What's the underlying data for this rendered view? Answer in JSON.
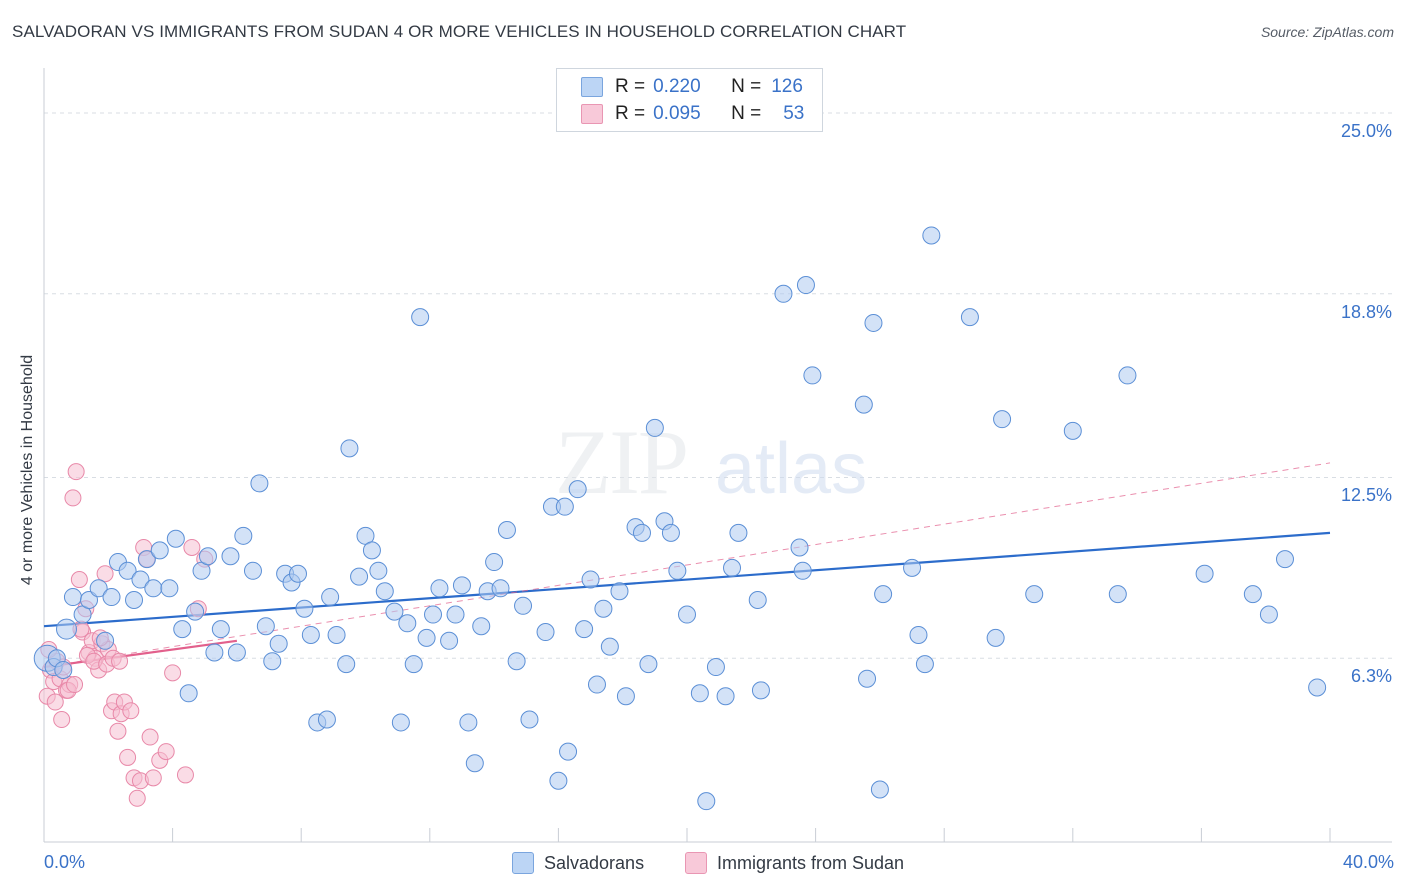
{
  "title": "SALVADORAN VS IMMIGRANTS FROM SUDAN 4 OR MORE VEHICLES IN HOUSEHOLD CORRELATION CHART",
  "source": "Source: ZipAtlas.com",
  "watermark": {
    "zip": "ZIP",
    "atlas": "atlas"
  },
  "legend": {
    "r_label": "R =",
    "n_label": "N =",
    "series": [
      {
        "r": "0.220",
        "n": "126"
      },
      {
        "r": "0.095",
        "n": "53"
      }
    ]
  },
  "colors": {
    "blue_fill": "#aecbf1",
    "blue_stroke": "#5b8fd6",
    "blue_line": "#2c6ccb",
    "pink_fill": "#f6bfd2",
    "pink_stroke": "#e888a8",
    "pink_line": "#e2608c",
    "grid": "#d8dde3",
    "axis_text": "#3a72c8"
  },
  "chart_data": {
    "type": "scatter",
    "title": "SALVADORAN VS IMMIGRANTS FROM SUDAN 4 OR MORE VEHICLES IN HOUSEHOLD CORRELATION CHART",
    "xlabel": "",
    "ylabel": "4 or more Vehicles in Household",
    "xlim": [
      0,
      40
    ],
    "ylim": [
      0,
      26.2
    ],
    "x_tick_labels": [
      "0.0%",
      "40.0%"
    ],
    "y_ticks": [
      6.3,
      12.5,
      18.8,
      25.0
    ],
    "y_tick_labels": [
      "6.3%",
      "12.5%",
      "18.8%",
      "25.0%"
    ],
    "series": [
      {
        "name": "Salvadorans",
        "trend": {
          "x": [
            0,
            40
          ],
          "y": [
            7.4,
            10.6
          ],
          "style": "solid"
        },
        "points": [
          [
            0.1,
            6.3
          ],
          [
            0.3,
            6.0
          ],
          [
            0.4,
            6.3
          ],
          [
            0.6,
            5.9
          ],
          [
            0.7,
            7.3
          ],
          [
            0.9,
            8.4
          ],
          [
            1.2,
            7.8
          ],
          [
            1.4,
            8.3
          ],
          [
            1.7,
            8.7
          ],
          [
            1.9,
            6.9
          ],
          [
            2.1,
            8.4
          ],
          [
            2.3,
            9.6
          ],
          [
            2.6,
            9.3
          ],
          [
            2.8,
            8.3
          ],
          [
            3.0,
            9.0
          ],
          [
            3.2,
            9.7
          ],
          [
            3.4,
            8.7
          ],
          [
            3.6,
            10.0
          ],
          [
            3.9,
            8.7
          ],
          [
            4.1,
            10.4
          ],
          [
            4.3,
            7.3
          ],
          [
            4.5,
            5.1
          ],
          [
            4.7,
            7.9
          ],
          [
            4.9,
            9.3
          ],
          [
            5.1,
            9.8
          ],
          [
            5.3,
            6.5
          ],
          [
            5.5,
            7.3
          ],
          [
            5.8,
            9.8
          ],
          [
            6.0,
            6.5
          ],
          [
            6.2,
            10.5
          ],
          [
            6.5,
            9.3
          ],
          [
            6.7,
            12.3
          ],
          [
            6.9,
            7.4
          ],
          [
            7.1,
            6.2
          ],
          [
            7.3,
            6.8
          ],
          [
            7.5,
            9.2
          ],
          [
            7.7,
            8.9
          ],
          [
            7.9,
            9.2
          ],
          [
            8.1,
            8.0
          ],
          [
            8.3,
            7.1
          ],
          [
            8.5,
            4.1
          ],
          [
            8.8,
            4.2
          ],
          [
            8.9,
            8.4
          ],
          [
            9.1,
            7.1
          ],
          [
            9.4,
            6.1
          ],
          [
            9.5,
            13.5
          ],
          [
            9.8,
            9.1
          ],
          [
            10.0,
            10.5
          ],
          [
            10.2,
            10.0
          ],
          [
            10.4,
            9.3
          ],
          [
            10.6,
            8.6
          ],
          [
            10.9,
            7.9
          ],
          [
            11.1,
            4.1
          ],
          [
            11.3,
            7.5
          ],
          [
            11.5,
            6.1
          ],
          [
            11.7,
            18.0
          ],
          [
            11.9,
            7.0
          ],
          [
            12.1,
            7.8
          ],
          [
            12.3,
            8.7
          ],
          [
            12.6,
            6.9
          ],
          [
            12.8,
            7.8
          ],
          [
            13.0,
            8.8
          ],
          [
            13.2,
            4.1
          ],
          [
            13.4,
            2.7
          ],
          [
            13.6,
            7.4
          ],
          [
            13.8,
            8.6
          ],
          [
            14.0,
            9.6
          ],
          [
            14.2,
            8.7
          ],
          [
            14.4,
            10.7
          ],
          [
            14.7,
            6.2
          ],
          [
            14.9,
            8.1
          ],
          [
            15.1,
            4.2
          ],
          [
            15.6,
            7.2
          ],
          [
            15.8,
            11.5
          ],
          [
            16.0,
            2.1
          ],
          [
            16.2,
            11.5
          ],
          [
            16.3,
            3.1
          ],
          [
            16.6,
            12.1
          ],
          [
            16.8,
            7.3
          ],
          [
            17.0,
            9.0
          ],
          [
            17.2,
            5.4
          ],
          [
            17.4,
            8.0
          ],
          [
            17.6,
            6.7
          ],
          [
            17.9,
            8.6
          ],
          [
            18.1,
            5.0
          ],
          [
            18.4,
            10.8
          ],
          [
            18.6,
            10.6
          ],
          [
            18.8,
            6.1
          ],
          [
            19.0,
            14.2
          ],
          [
            19.3,
            11.0
          ],
          [
            19.5,
            10.6
          ],
          [
            19.7,
            9.3
          ],
          [
            20.0,
            7.8
          ],
          [
            20.4,
            5.1
          ],
          [
            20.6,
            1.4
          ],
          [
            20.9,
            6.0
          ],
          [
            21.2,
            5.0
          ],
          [
            21.4,
            9.4
          ],
          [
            21.6,
            10.6
          ],
          [
            22.2,
            8.3
          ],
          [
            22.3,
            5.2
          ],
          [
            23.0,
            18.8
          ],
          [
            23.5,
            10.1
          ],
          [
            23.6,
            9.3
          ],
          [
            23.7,
            19.1
          ],
          [
            23.9,
            16.0
          ],
          [
            25.5,
            15.0
          ],
          [
            25.6,
            5.6
          ],
          [
            25.8,
            17.8
          ],
          [
            26.0,
            1.8
          ],
          [
            26.1,
            8.5
          ],
          [
            27.0,
            9.4
          ],
          [
            27.2,
            7.1
          ],
          [
            27.4,
            6.1
          ],
          [
            27.6,
            20.8
          ],
          [
            28.8,
            18.0
          ],
          [
            29.6,
            7.0
          ],
          [
            29.8,
            14.5
          ],
          [
            30.8,
            8.5
          ],
          [
            32.0,
            14.1
          ],
          [
            33.4,
            8.5
          ],
          [
            33.7,
            16.0
          ],
          [
            36.1,
            9.2
          ],
          [
            37.6,
            8.5
          ],
          [
            38.1,
            7.8
          ],
          [
            38.6,
            9.7
          ],
          [
            39.6,
            5.3
          ]
        ]
      },
      {
        "name": "Immigrants from Sudan",
        "trend_solid": {
          "x": [
            0,
            6
          ],
          "y": [
            6.0,
            6.9
          ]
        },
        "trend_dashed": {
          "x": [
            0,
            40
          ],
          "y": [
            6.0,
            13.0
          ]
        },
        "points": [
          [
            0.1,
            5.0
          ],
          [
            0.2,
            5.9
          ],
          [
            0.3,
            5.5
          ],
          [
            0.4,
            6.2
          ],
          [
            0.5,
            5.6
          ],
          [
            0.6,
            6.0
          ],
          [
            0.7,
            5.2
          ],
          [
            0.8,
            5.4
          ],
          [
            0.9,
            11.8
          ],
          [
            1.0,
            12.7
          ],
          [
            1.1,
            9.0
          ],
          [
            1.2,
            7.2
          ],
          [
            1.3,
            8.0
          ],
          [
            1.4,
            6.5
          ],
          [
            1.5,
            6.9
          ],
          [
            1.6,
            6.3
          ],
          [
            1.7,
            5.9
          ],
          [
            1.8,
            6.8
          ],
          [
            1.9,
            9.2
          ],
          [
            2.0,
            6.6
          ],
          [
            2.1,
            4.5
          ],
          [
            2.2,
            4.8
          ],
          [
            2.3,
            3.8
          ],
          [
            2.4,
            4.4
          ],
          [
            2.5,
            4.8
          ],
          [
            2.6,
            2.9
          ],
          [
            2.7,
            4.5
          ],
          [
            2.8,
            2.2
          ],
          [
            2.9,
            1.5
          ],
          [
            3.0,
            2.1
          ],
          [
            3.1,
            10.1
          ],
          [
            3.2,
            9.7
          ],
          [
            3.3,
            3.6
          ],
          [
            3.4,
            2.2
          ],
          [
            3.6,
            2.8
          ],
          [
            3.8,
            3.1
          ],
          [
            4.0,
            5.8
          ],
          [
            4.4,
            2.3
          ],
          [
            4.6,
            10.1
          ],
          [
            4.8,
            8.0
          ],
          [
            5.0,
            9.7
          ],
          [
            0.15,
            6.6
          ],
          [
            0.35,
            4.8
          ],
          [
            0.55,
            4.2
          ],
          [
            0.75,
            5.2
          ],
          [
            0.95,
            5.4
          ],
          [
            1.15,
            7.3
          ],
          [
            1.35,
            6.4
          ],
          [
            1.55,
            6.2
          ],
          [
            1.75,
            7.0
          ],
          [
            1.95,
            6.1
          ],
          [
            2.15,
            6.3
          ],
          [
            2.35,
            6.2
          ]
        ]
      }
    ],
    "legend_entries": [
      "Salvadorans",
      "Immigrants from Sudan"
    ]
  }
}
